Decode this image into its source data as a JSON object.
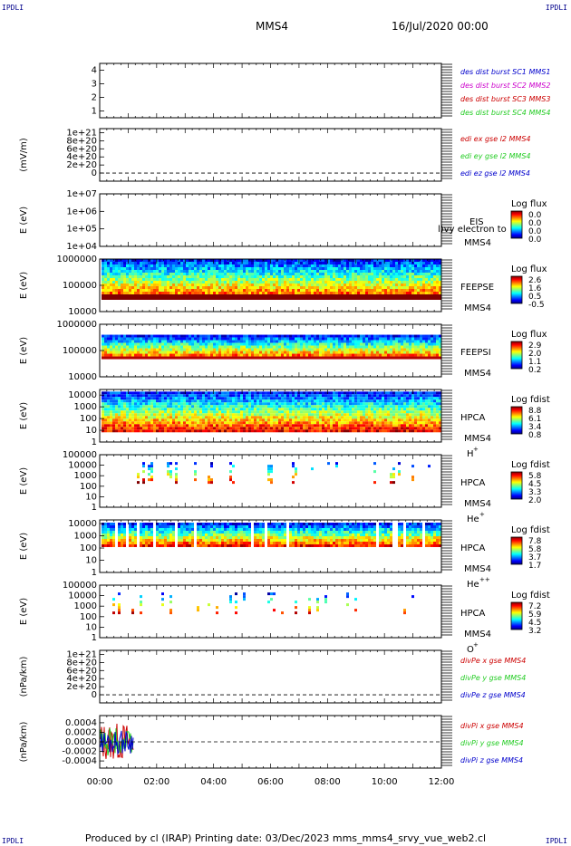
{
  "header": {
    "title": "MMS4",
    "date": "16/Jul/2020 00:00",
    "corner_tl": "IPDLI",
    "corner_tr": "IPDLI",
    "corner_bl": "IPDLI",
    "corner_br": "IPDLI"
  },
  "footer": {
    "text": "Produced by cl (IRAP)   Printing date: 03/Dec/2023   mms_mms4_srvy_vue_web2.cl"
  },
  "colors": {
    "red": "#cc0000",
    "green": "#22cc22",
    "blue": "#0000cc",
    "magenta": "#cc00cc",
    "dark_blue": "#00008b"
  },
  "chart_data": [
    {
      "type": "line",
      "panel": "des-dist",
      "ylabel": "",
      "yticks": [
        "1",
        "2",
        "3",
        "4"
      ],
      "ylim": [
        0.5,
        4.5
      ],
      "legend": [
        {
          "name": "des dist burst SC1 MMS1",
          "color": "#0000cc"
        },
        {
          "name": "des dist burst SC2 MMS2",
          "color": "#cc00cc"
        },
        {
          "name": "des dist burst SC3 MMS3",
          "color": "#cc0000"
        },
        {
          "name": "des dist burst SC4 MMS4",
          "color": "#22cc22"
        }
      ],
      "series": []
    },
    {
      "type": "line",
      "panel": "edi-e",
      "ylabel": "(mV/m)",
      "yticks": [
        "0",
        "2e+20",
        "4e+20",
        "6e+20",
        "8e+20",
        "1e+21"
      ],
      "ylim": [
        -2e+20,
        1.1e+21
      ],
      "zero_line": true,
      "legend": [
        {
          "name": "edi ex gse l2 MMS4",
          "color": "#cc0000"
        },
        {
          "name": "edi ey gse l2 MMS4",
          "color": "#22cc22"
        },
        {
          "name": "edi ez gse l2 MMS4",
          "color": "#0000cc"
        }
      ],
      "series": []
    },
    {
      "type": "heatmap",
      "panel": "eis",
      "ylabel": "E (eV)",
      "yticks": [
        "1e+04",
        "1e+05",
        "1e+06",
        "1e+07"
      ],
      "scale": "log",
      "ylim": [
        10000.0,
        10000000.0
      ],
      "instrument": "EIS",
      "instrument_extra": "l)vy electron to",
      "spacecraft": "MMS4",
      "colorbar_title": "Log flux",
      "colorbar_ticks": [
        "0.0",
        "0.0",
        "0.0",
        "0.0"
      ],
      "coverage": "none"
    },
    {
      "type": "heatmap",
      "panel": "feepse",
      "ylabel": "E (eV)",
      "yticks": [
        "10000",
        "100000",
        "1000000"
      ],
      "scale": "log",
      "ylim": [
        10000.0,
        1000000.0
      ],
      "instrument": "FEEPSE",
      "spacecraft": "MMS4",
      "colorbar_title": "Log flux",
      "colorbar_ticks": [
        "2.6",
        "1.6",
        "0.5",
        "-0.5"
      ],
      "coverage": "full",
      "band_ev": [
        30000.0,
        1000000.0
      ]
    },
    {
      "type": "heatmap",
      "panel": "feepsi",
      "ylabel": "E (eV)",
      "yticks": [
        "10000",
        "100000",
        "1000000"
      ],
      "scale": "log",
      "ylim": [
        10000.0,
        1000000.0
      ],
      "instrument": "FEEPSI",
      "spacecraft": "MMS4",
      "colorbar_title": "Log flux",
      "colorbar_ticks": [
        "2.9",
        "2.0",
        "1.1",
        "0.2"
      ],
      "coverage": "full",
      "band_ev": [
        50000.0,
        400000.0
      ]
    },
    {
      "type": "heatmap",
      "panel": "hpca-h",
      "ylabel": "E (eV)",
      "yticks": [
        "1",
        "10",
        "100",
        "1000",
        "10000"
      ],
      "scale": "log",
      "ylim": [
        1,
        30000.0
      ],
      "instrument": "HPCA",
      "spacecraft": "MMS4",
      "species": "H",
      "species_sup": "+",
      "colorbar_title": "Log fdist",
      "colorbar_ticks": [
        "8.8",
        "6.1",
        "3.4",
        "0.8"
      ],
      "coverage": "full",
      "band_ev": [
        10,
        20000.0
      ]
    },
    {
      "type": "heatmap",
      "panel": "hpca-he1",
      "ylabel": "E (eV)",
      "yticks": [
        "1",
        "10",
        "100",
        "1000",
        "10000",
        "100000"
      ],
      "scale": "log",
      "ylim": [
        1,
        100000.0
      ],
      "instrument": "HPCA",
      "spacecraft": "MMS4",
      "species": "He",
      "species_sup": "+",
      "colorbar_title": "Log fdist",
      "colorbar_ticks": [
        "5.8",
        "4.5",
        "3.3",
        "2.0"
      ],
      "coverage": "sparse",
      "band_ev": [
        300,
        20000.0
      ]
    },
    {
      "type": "heatmap",
      "panel": "hpca-he2",
      "ylabel": "E (eV)",
      "yticks": [
        "1",
        "10",
        "100",
        "1000",
        "10000"
      ],
      "scale": "log",
      "ylim": [
        1,
        20000.0
      ],
      "instrument": "HPCA",
      "spacecraft": "MMS4",
      "species": "He",
      "species_sup": "++",
      "colorbar_title": "Log fdist",
      "colorbar_ticks": [
        "7.8",
        "5.8",
        "3.7",
        "1.7"
      ],
      "coverage": "mid",
      "band_ev": [
        150,
        12000.0
      ]
    },
    {
      "type": "heatmap",
      "panel": "hpca-o",
      "ylabel": "E (eV)",
      "yticks": [
        "1",
        "10",
        "100",
        "1000",
        "10000",
        "100000"
      ],
      "scale": "log",
      "ylim": [
        1,
        100000.0
      ],
      "instrument": "HPCA",
      "spacecraft": "MMS4",
      "species": "O",
      "species_sup": "+",
      "colorbar_title": "Log fdist",
      "colorbar_ticks": [
        "7.2",
        "5.9",
        "4.5",
        "3.2"
      ],
      "coverage": "sparse",
      "band_ev": [
        300,
        20000.0
      ]
    },
    {
      "type": "line",
      "panel": "divpe",
      "ylabel": "(nPa/km)",
      "yticks": [
        "0",
        "2e+20",
        "4e+20",
        "6e+20",
        "8e+20",
        "1e+21"
      ],
      "ylim": [
        -2e+20,
        1.1e+21
      ],
      "zero_line": true,
      "legend": [
        {
          "name": "divPe x gse MMS4",
          "color": "#cc0000"
        },
        {
          "name": "divPe y gse MMS4",
          "color": "#22cc22"
        },
        {
          "name": "divPe z gse MMS4",
          "color": "#0000cc"
        }
      ],
      "series": []
    },
    {
      "type": "line",
      "panel": "divpi",
      "ylabel": "(nPa/km)",
      "yticks": [
        "-0.0004",
        "-0.0002",
        "0.0000",
        "0.0002",
        "0.0004"
      ],
      "ylim": [
        -0.00055,
        0.00055
      ],
      "zero_line": true,
      "legend": [
        {
          "name": "divPi x gse MMS4",
          "color": "#cc0000"
        },
        {
          "name": "divPi y gse MMS4",
          "color": "#22cc22"
        },
        {
          "name": "divPi z gse MMS4",
          "color": "#0000cc"
        }
      ],
      "series": [
        {
          "name": "divPi x gse MMS4",
          "x_hours": [
            0.0,
            1.2
          ],
          "amplitude": 0.0004,
          "color": "#cc0000"
        },
        {
          "name": "divPi y gse MMS4",
          "x_hours": [
            0.0,
            1.2
          ],
          "amplitude": 0.0003,
          "color": "#22cc22"
        },
        {
          "name": "divPi z gse MMS4",
          "x_hours": [
            0.0,
            1.2
          ],
          "amplitude": 0.00025,
          "color": "#0000cc"
        }
      ]
    }
  ],
  "xaxis": {
    "ticks": [
      "00:00",
      "02:00",
      "04:00",
      "06:00",
      "08:00",
      "10:00",
      "12:00"
    ],
    "range_hours": [
      0,
      12
    ]
  }
}
